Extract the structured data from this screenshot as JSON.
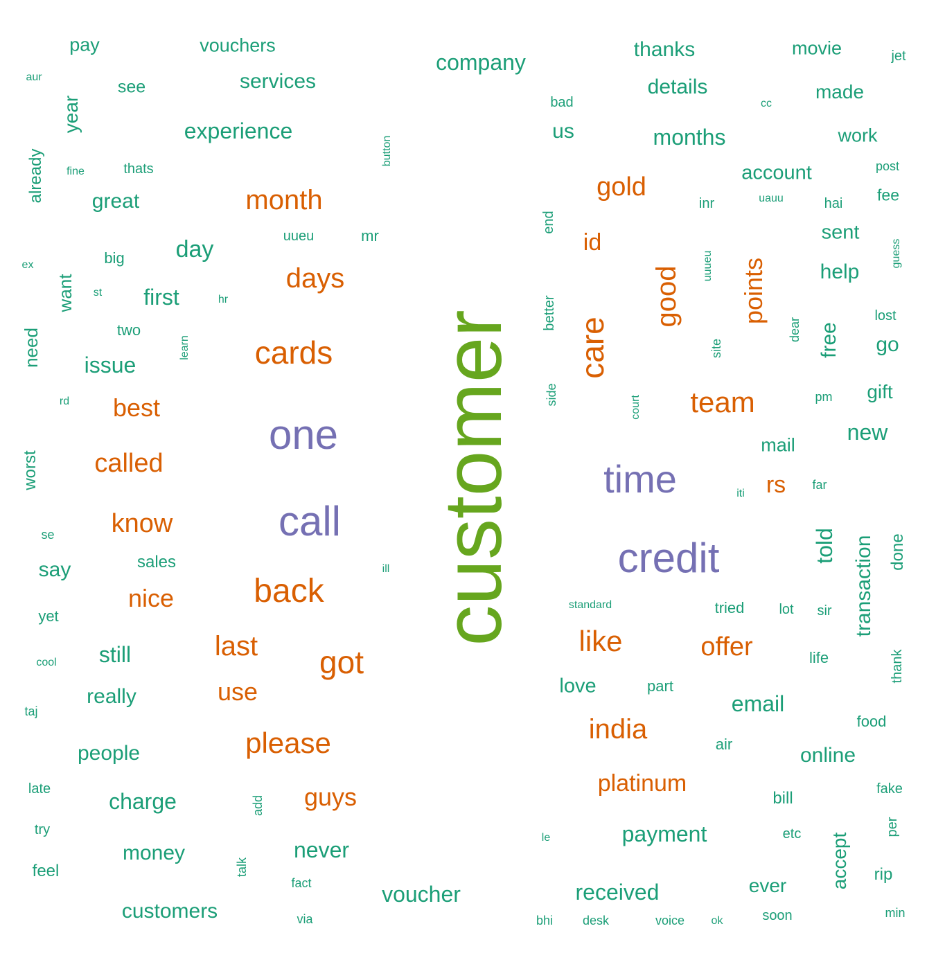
{
  "colors": {
    "background": "#ffffff",
    "tier_small": "#1b9e77",
    "tier_medium": "#d95f02",
    "tier_large": "#7570b3",
    "tier_top": "#66a61e"
  },
  "words": [
    {
      "text": "customer",
      "tier": "top"
    },
    {
      "text": "one",
      "tier": "large"
    },
    {
      "text": "call",
      "tier": "large"
    },
    {
      "text": "time",
      "tier": "large"
    },
    {
      "text": "credit",
      "tier": "large"
    },
    {
      "text": "month",
      "tier": "medium"
    },
    {
      "text": "days",
      "tier": "medium"
    },
    {
      "text": "cards",
      "tier": "medium"
    },
    {
      "text": "best",
      "tier": "medium"
    },
    {
      "text": "called",
      "tier": "medium"
    },
    {
      "text": "know",
      "tier": "medium"
    },
    {
      "text": "nice",
      "tier": "medium"
    },
    {
      "text": "back",
      "tier": "medium"
    },
    {
      "text": "last",
      "tier": "medium"
    },
    {
      "text": "got",
      "tier": "medium"
    },
    {
      "text": "use",
      "tier": "medium"
    },
    {
      "text": "please",
      "tier": "medium"
    },
    {
      "text": "guys",
      "tier": "medium"
    },
    {
      "text": "gold",
      "tier": "medium"
    },
    {
      "text": "id",
      "tier": "medium"
    },
    {
      "text": "good",
      "tier": "medium"
    },
    {
      "text": "care",
      "tier": "medium"
    },
    {
      "text": "points",
      "tier": "medium"
    },
    {
      "text": "team",
      "tier": "medium"
    },
    {
      "text": "rs",
      "tier": "medium"
    },
    {
      "text": "like",
      "tier": "medium"
    },
    {
      "text": "offer",
      "tier": "medium"
    },
    {
      "text": "india",
      "tier": "medium"
    },
    {
      "text": "platinum",
      "tier": "medium"
    },
    {
      "text": "pay",
      "tier": "small"
    },
    {
      "text": "vouchers",
      "tier": "small"
    },
    {
      "text": "company",
      "tier": "small"
    },
    {
      "text": "thanks",
      "tier": "small"
    },
    {
      "text": "movie",
      "tier": "small"
    },
    {
      "text": "jet",
      "tier": "small"
    },
    {
      "text": "aur",
      "tier": "small"
    },
    {
      "text": "see",
      "tier": "small"
    },
    {
      "text": "services",
      "tier": "small"
    },
    {
      "text": "details",
      "tier": "small"
    },
    {
      "text": "made",
      "tier": "small"
    },
    {
      "text": "bad",
      "tier": "small"
    },
    {
      "text": "cc",
      "tier": "small"
    },
    {
      "text": "year",
      "tier": "small"
    },
    {
      "text": "experience",
      "tier": "small"
    },
    {
      "text": "us",
      "tier": "small"
    },
    {
      "text": "months",
      "tier": "small"
    },
    {
      "text": "work",
      "tier": "small"
    },
    {
      "text": "button",
      "tier": "small"
    },
    {
      "text": "already",
      "tier": "small"
    },
    {
      "text": "fine",
      "tier": "small"
    },
    {
      "text": "thats",
      "tier": "small"
    },
    {
      "text": "account",
      "tier": "small"
    },
    {
      "text": "post",
      "tier": "small"
    },
    {
      "text": "great",
      "tier": "small"
    },
    {
      "text": "inr",
      "tier": "small"
    },
    {
      "text": "uauu",
      "tier": "small"
    },
    {
      "text": "hai",
      "tier": "small"
    },
    {
      "text": "fee",
      "tier": "small"
    },
    {
      "text": "end",
      "tier": "small"
    },
    {
      "text": "uueu",
      "tier": "small"
    },
    {
      "text": "mr",
      "tier": "small"
    },
    {
      "text": "sent",
      "tier": "small"
    },
    {
      "text": "guess",
      "tier": "small"
    },
    {
      "text": "day",
      "tier": "small"
    },
    {
      "text": "big",
      "tier": "small"
    },
    {
      "text": "ex",
      "tier": "small"
    },
    {
      "text": "uuueu",
      "tier": "small"
    },
    {
      "text": "help",
      "tier": "small"
    },
    {
      "text": "want",
      "tier": "small"
    },
    {
      "text": "st",
      "tier": "small"
    },
    {
      "text": "first",
      "tier": "small"
    },
    {
      "text": "hr",
      "tier": "small"
    },
    {
      "text": "better",
      "tier": "small"
    },
    {
      "text": "lost",
      "tier": "small"
    },
    {
      "text": "two",
      "tier": "small"
    },
    {
      "text": "dear",
      "tier": "small"
    },
    {
      "text": "free",
      "tier": "small"
    },
    {
      "text": "go",
      "tier": "small"
    },
    {
      "text": "need",
      "tier": "small"
    },
    {
      "text": "learn",
      "tier": "small"
    },
    {
      "text": "site",
      "tier": "small"
    },
    {
      "text": "issue",
      "tier": "small"
    },
    {
      "text": "side",
      "tier": "small"
    },
    {
      "text": "gift",
      "tier": "small"
    },
    {
      "text": "rd",
      "tier": "small"
    },
    {
      "text": "court",
      "tier": "small"
    },
    {
      "text": "pm",
      "tier": "small"
    },
    {
      "text": "new",
      "tier": "small"
    },
    {
      "text": "mail",
      "tier": "small"
    },
    {
      "text": "worst",
      "tier": "small"
    },
    {
      "text": "far",
      "tier": "small"
    },
    {
      "text": "iti",
      "tier": "small"
    },
    {
      "text": "se",
      "tier": "small"
    },
    {
      "text": "told",
      "tier": "small"
    },
    {
      "text": "transaction",
      "tier": "small"
    },
    {
      "text": "done",
      "tier": "small"
    },
    {
      "text": "sales",
      "tier": "small"
    },
    {
      "text": "ill",
      "tier": "small"
    },
    {
      "text": "say",
      "tier": "small"
    },
    {
      "text": "standard",
      "tier": "small"
    },
    {
      "text": "tried",
      "tier": "small"
    },
    {
      "text": "lot",
      "tier": "small"
    },
    {
      "text": "sir",
      "tier": "small"
    },
    {
      "text": "yet",
      "tier": "small"
    },
    {
      "text": "thank",
      "tier": "small"
    },
    {
      "text": "cool",
      "tier": "small"
    },
    {
      "text": "still",
      "tier": "small"
    },
    {
      "text": "life",
      "tier": "small"
    },
    {
      "text": "love",
      "tier": "small"
    },
    {
      "text": "part",
      "tier": "small"
    },
    {
      "text": "really",
      "tier": "small"
    },
    {
      "text": "email",
      "tier": "small"
    },
    {
      "text": "taj",
      "tier": "small"
    },
    {
      "text": "food",
      "tier": "small"
    },
    {
      "text": "air",
      "tier": "small"
    },
    {
      "text": "people",
      "tier": "small"
    },
    {
      "text": "online",
      "tier": "small"
    },
    {
      "text": "late",
      "tier": "small"
    },
    {
      "text": "fake",
      "tier": "small"
    },
    {
      "text": "add",
      "tier": "small"
    },
    {
      "text": "charge",
      "tier": "small"
    },
    {
      "text": "bill",
      "tier": "small"
    },
    {
      "text": "try",
      "tier": "small"
    },
    {
      "text": "etc",
      "tier": "small"
    },
    {
      "text": "per",
      "tier": "small"
    },
    {
      "text": "le",
      "tier": "small"
    },
    {
      "text": "payment",
      "tier": "small"
    },
    {
      "text": "accept",
      "tier": "small"
    },
    {
      "text": "money",
      "tier": "small"
    },
    {
      "text": "never",
      "tier": "small"
    },
    {
      "text": "feel",
      "tier": "small"
    },
    {
      "text": "talk",
      "tier": "small"
    },
    {
      "text": "rip",
      "tier": "small"
    },
    {
      "text": "fact",
      "tier": "small"
    },
    {
      "text": "ever",
      "tier": "small"
    },
    {
      "text": "voucher",
      "tier": "small"
    },
    {
      "text": "received",
      "tier": "small"
    },
    {
      "text": "customers",
      "tier": "small"
    },
    {
      "text": "min",
      "tier": "small"
    },
    {
      "text": "via",
      "tier": "small"
    },
    {
      "text": "soon",
      "tier": "small"
    },
    {
      "text": "bhi",
      "tier": "small"
    },
    {
      "text": "desk",
      "tier": "small"
    },
    {
      "text": "voice",
      "tier": "small"
    },
    {
      "text": "ok",
      "tier": "small"
    }
  ]
}
